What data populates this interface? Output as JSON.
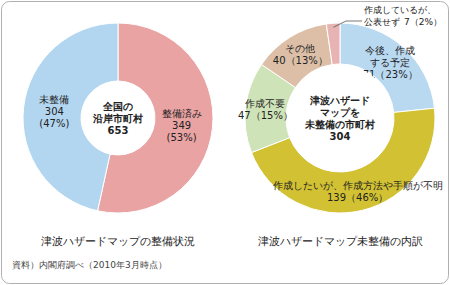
{
  "chart_data": [
    {
      "type": "pie",
      "title": "津波ハザードマップの整備状況",
      "center_label": "全国の\n沿岸市町村",
      "total": 653,
      "categories": [
        "整備済み",
        "未整備"
      ],
      "values": [
        349,
        304
      ],
      "value_labels": [
        "349\n(53%)",
        "304\n(47%)"
      ],
      "colors": [
        "#e9a3a3",
        "#b3d6f0"
      ],
      "data_labels": true
    },
    {
      "type": "pie",
      "title": "津波ハザードマップ未整備の内訳",
      "center_label": "津波ハザード\nマップを\n未整備の市町村",
      "total": 304,
      "categories": [
        "今後、作成\nする予定",
        "作成したいが、作成方法や手順が不明",
        "作成不要",
        "その他",
        "作成しているが、\n公表せず"
      ],
      "values": [
        71,
        139,
        47,
        40,
        7
      ],
      "value_labels": [
        "71（23%）",
        "139（46%）",
        "47（15%）",
        "40（13%）",
        "7（2%）"
      ],
      "colors": [
        "#b9d9f1",
        "#d2c233",
        "#cfe3b8",
        "#dcbfa6",
        "#e8b3b3"
      ],
      "data_labels": true
    }
  ],
  "source": "資料）内閣府調べ（2010年3月時点）"
}
